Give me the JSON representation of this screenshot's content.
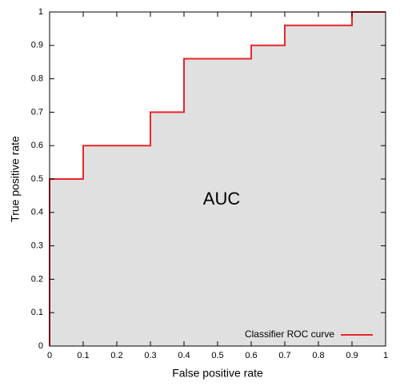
{
  "chart_data": {
    "type": "line",
    "xlabel": "False positive rate",
    "ylabel": "True positive rate",
    "annotation": "AUC",
    "x": [
      0,
      0,
      0.1,
      0.1,
      0.3,
      0.3,
      0.4,
      0.4,
      0.6,
      0.6,
      0.7,
      0.7,
      0.9,
      0.9,
      1
    ],
    "series": [
      {
        "name": "Classifier ROC curve",
        "color": "#e8262a",
        "values": [
          0,
          0.5,
          0.5,
          0.6,
          0.6,
          0.7,
          0.7,
          0.86,
          0.86,
          0.9,
          0.9,
          0.96,
          0.96,
          1,
          1
        ]
      }
    ],
    "area_color": "#e0e0e0",
    "xlim": [
      0,
      1
    ],
    "ylim": [
      0,
      1
    ],
    "xticks": [
      0,
      0.1,
      0.2,
      0.3,
      0.4,
      0.5,
      0.6,
      0.7,
      0.8,
      0.9,
      1
    ],
    "yticks": [
      0,
      0.1,
      0.2,
      0.3,
      0.4,
      0.5,
      0.6,
      0.7,
      0.8,
      0.9,
      1
    ],
    "legend": "lower right"
  }
}
